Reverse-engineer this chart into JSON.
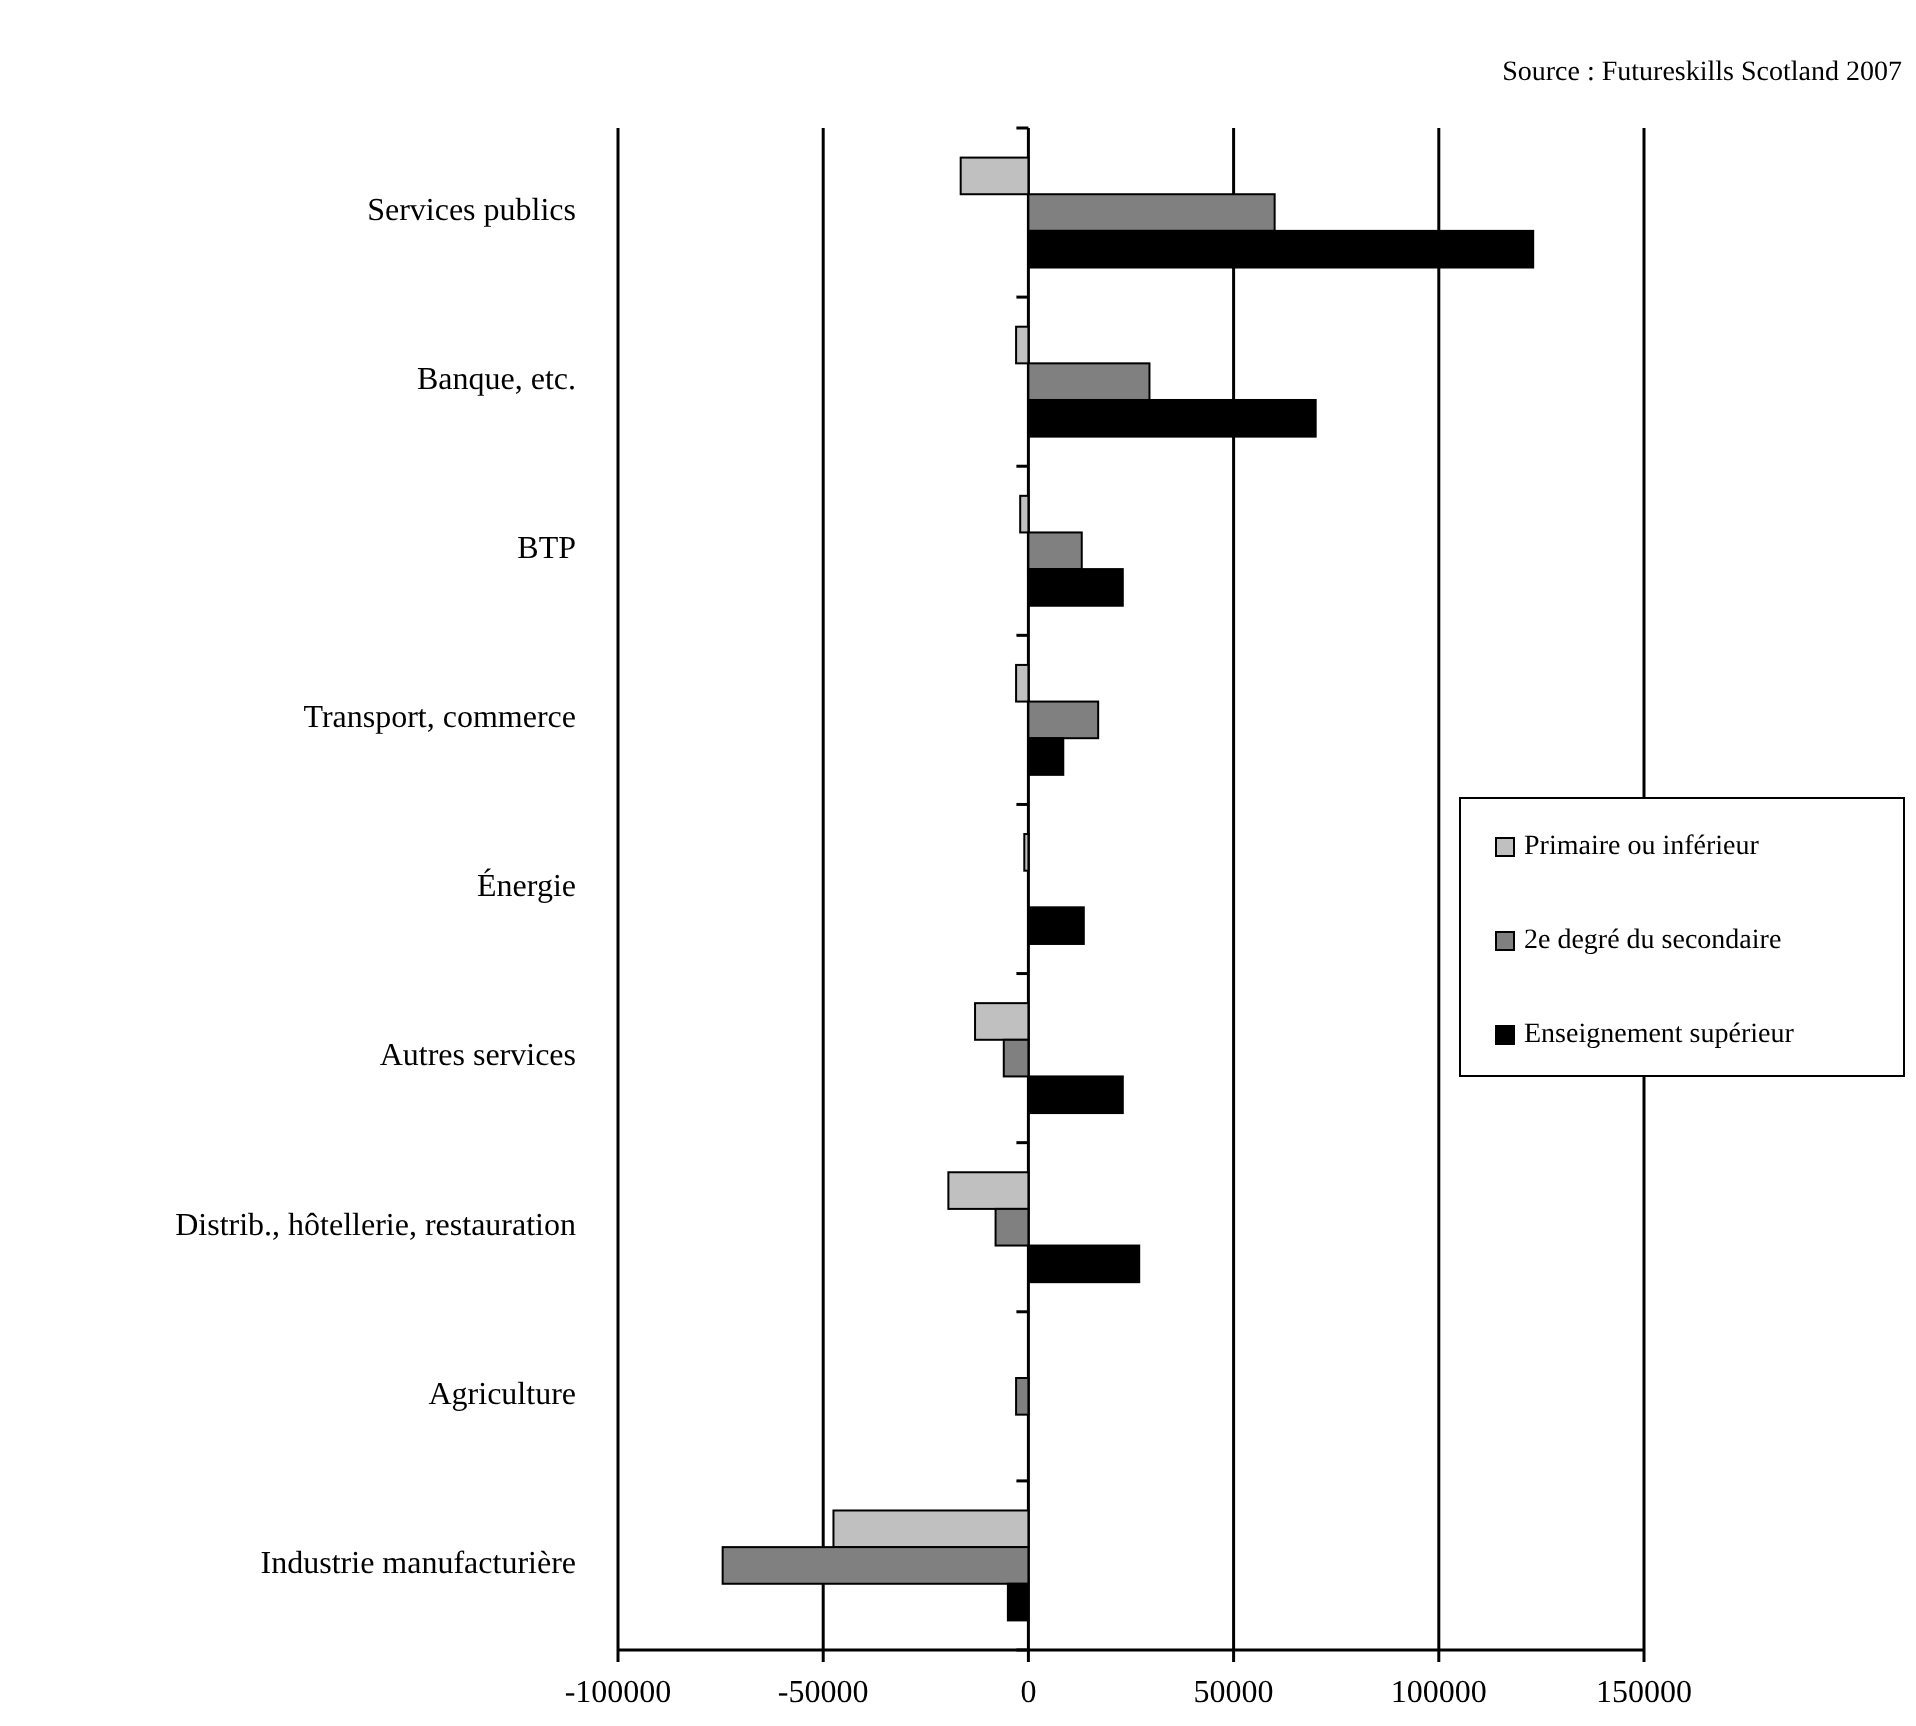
{
  "chart_data": {
    "type": "bar",
    "orientation": "horizontal",
    "annotations": [
      "Source : Futureskills Scotland 2007"
    ],
    "categories": [
      "Services publics",
      "Banque, etc.",
      "BTP",
      "Transport, commerce",
      "Énergie ",
      "Autres services",
      "Distrib., hôtellerie, restauration",
      "Agriculture ",
      "Industrie manufacturière"
    ],
    "series": [
      {
        "name": "Primaire ou inférieur",
        "color": "#c0c0c0",
        "values": [
          -16500,
          -3000,
          -2000,
          -3000,
          -1000,
          -13000,
          -19500,
          0,
          -47500
        ]
      },
      {
        "name": "2e degré du secondaire",
        "color": "#808080",
        "values": [
          60000,
          29500,
          13000,
          17000,
          0,
          -6000,
          -8000,
          -3000,
          -74500
        ]
      },
      {
        "name": "Enseignement supérieur",
        "color": "#000000",
        "values": [
          123000,
          70000,
          23000,
          8500,
          13500,
          23000,
          27000,
          0,
          -5000
        ]
      }
    ],
    "xlim": [
      -100000,
      150000
    ],
    "xticks": [
      -100000,
      -50000,
      0,
      50000,
      100000,
      150000
    ],
    "grid": "x",
    "legend": "right"
  }
}
